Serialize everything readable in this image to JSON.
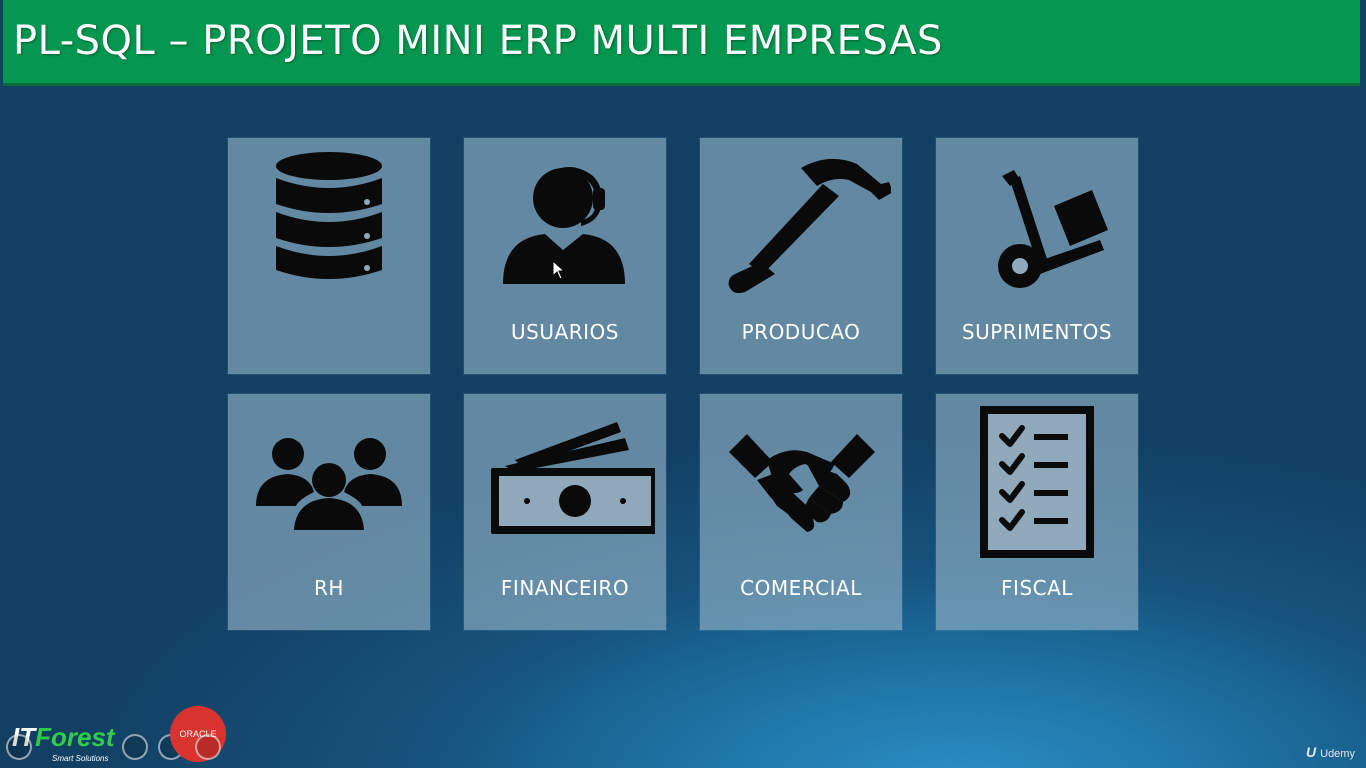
{
  "header": {
    "title": "PL-SQL – PROJETO MINI ERP MULTI EMPRESAS"
  },
  "modules": [
    {
      "id": "database",
      "label": "",
      "icon": "database-icon"
    },
    {
      "id": "usuarios",
      "label": "USUARIOS",
      "icon": "user-headset-icon"
    },
    {
      "id": "producao",
      "label": "PRODUCAO",
      "icon": "hammer-icon"
    },
    {
      "id": "suprimentos",
      "label": "SUPRIMENTOS",
      "icon": "hand-truck-icon"
    },
    {
      "id": "rh",
      "label": "RH",
      "icon": "people-group-icon"
    },
    {
      "id": "financeiro",
      "label": "FINANCEIRO",
      "icon": "money-bills-icon"
    },
    {
      "id": "comercial",
      "label": "COMERCIAL",
      "icon": "handshake-icon"
    },
    {
      "id": "fiscal",
      "label": "FISCAL",
      "icon": "checklist-icon"
    }
  ],
  "footer": {
    "brand_it": "IT",
    "brand_forest": "Forest",
    "brand_tagline": "Smart Solutions",
    "oracle_badge": "ORACLE",
    "watermark_logo": "U",
    "watermark_text": "Udemy"
  },
  "colors": {
    "header_green": "#05964f",
    "tile_fill": "#96b4c8",
    "icon_black": "#0a0a0a",
    "background_blue": "#16527c"
  }
}
